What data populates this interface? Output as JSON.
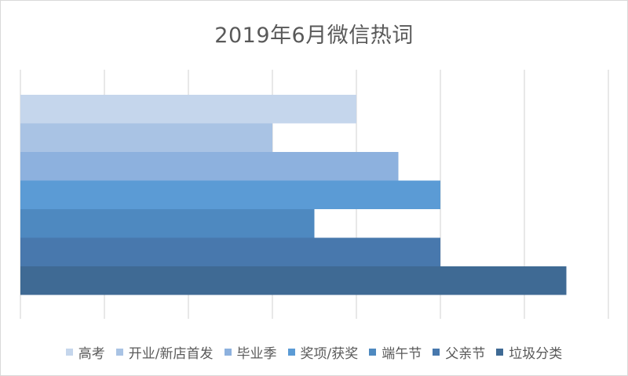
{
  "chart_data": {
    "type": "bar",
    "orientation": "horizontal",
    "title": "2019年6月微信热词",
    "categories": [
      "高考",
      "开业/新店首发",
      "毕业季",
      "奖项/获奖",
      "端午节",
      "父亲节",
      "垃圾分类"
    ],
    "values": [
      4.0,
      3.0,
      4.5,
      5.0,
      3.5,
      5.0,
      6.5
    ],
    "colors": [
      "#c5d6ec",
      "#a9c3e4",
      "#8db1de",
      "#5b9bd5",
      "#4e89c0",
      "#4878ad",
      "#3f6a94"
    ],
    "xlim": [
      0,
      7
    ],
    "grid": true,
    "gridline_color": "#d9d9d9",
    "axis_labels_visible": false,
    "legend_position": "bottom"
  }
}
